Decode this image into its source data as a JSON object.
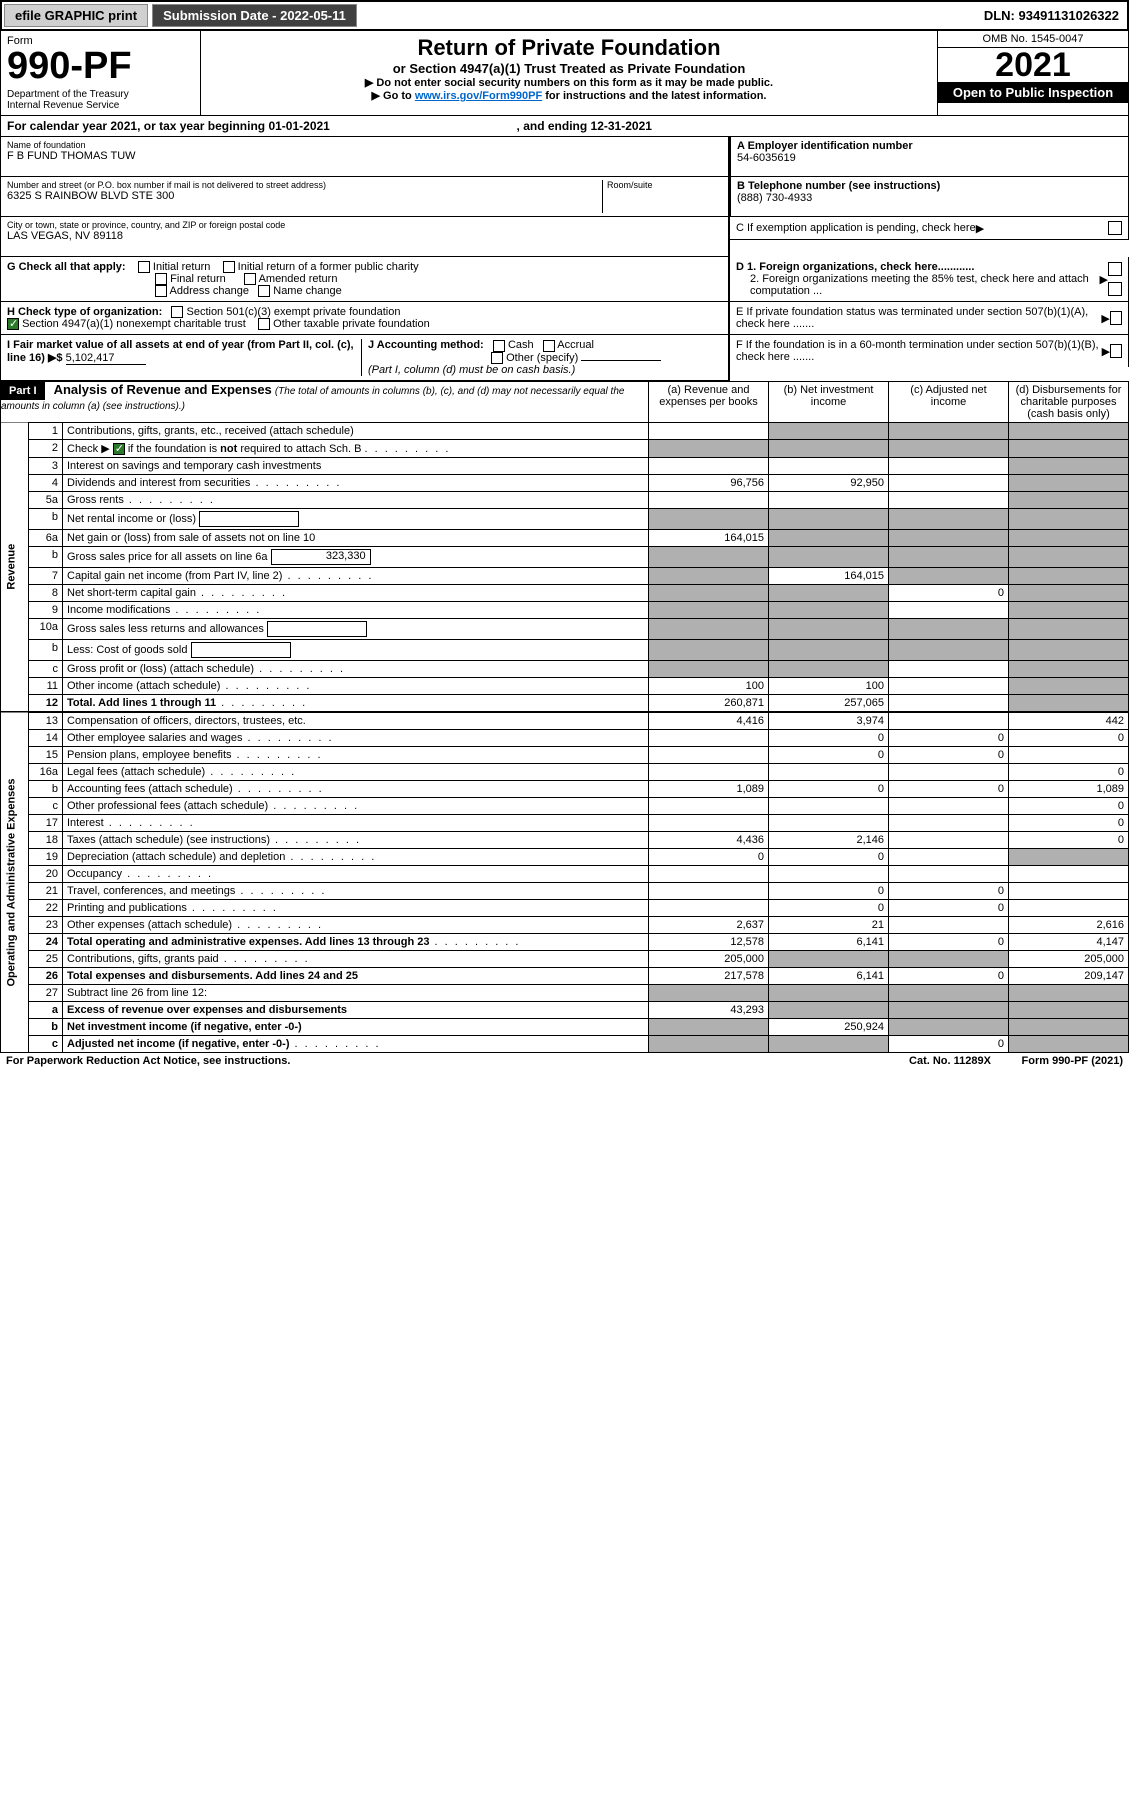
{
  "topbar": {
    "efile": "efile GRAPHIC print",
    "submission": "Submission Date - 2022-05-11",
    "dln_label": "DLN:",
    "dln": "93491131026322"
  },
  "header": {
    "form_label": "Form",
    "form_no": "990-PF",
    "dept": "Department of the Treasury\nInternal Revenue Service",
    "title": "Return of Private Foundation",
    "subtitle": "or Section 4947(a)(1) Trust Treated as Private Foundation",
    "note1": "▶ Do not enter social security numbers on this form as it may be made public.",
    "note2_pre": "▶ Go to ",
    "note2_link": "www.irs.gov/Form990PF",
    "note2_post": " for instructions and the latest information.",
    "omb": "OMB No. 1545-0047",
    "year": "2021",
    "inspection": "Open to Public Inspection"
  },
  "calendar": {
    "text_pre": "For calendar year 2021, or tax year beginning ",
    "begin": "01-01-2021",
    "mid": ", and ending ",
    "end": "12-31-2021"
  },
  "identity": {
    "name_label": "Name of foundation",
    "name": "F B FUND THOMAS TUW",
    "addr_label": "Number and street (or P.O. box number if mail is not delivered to street address)",
    "addr": "6325 S RAINBOW BLVD STE 300",
    "room_label": "Room/suite",
    "city_label": "City or town, state or province, country, and ZIP or foreign postal code",
    "city": "LAS VEGAS, NV  89118",
    "ein_label": "A Employer identification number",
    "ein": "54-6035619",
    "phone_label": "B Telephone number (see instructions)",
    "phone": "(888) 730-4933",
    "c_label": "C If exemption application is pending, check here"
  },
  "checks": {
    "g_label": "G Check all that apply:",
    "g_items": [
      "Initial return",
      "Initial return of a former public charity",
      "Final return",
      "Amended return",
      "Address change",
      "Name change"
    ],
    "h_label": "H Check type of organization:",
    "h_items": [
      "Section 501(c)(3) exempt private foundation",
      "Section 4947(a)(1) nonexempt charitable trust",
      "Other taxable private foundation"
    ],
    "h_checked_index": 1,
    "i_label": "I Fair market value of all assets at end of year (from Part II, col. (c), line 16) ▶$",
    "i_value": "5,102,417",
    "j_label": "J Accounting method:",
    "j_items": [
      "Cash",
      "Accrual",
      "Other (specify)"
    ],
    "j_note": "(Part I, column (d) must be on cash basis.)",
    "d1": "D 1. Foreign organizations, check here............",
    "d2": "2. Foreign organizations meeting the 85% test, check here and attach computation ...",
    "e": "E  If private foundation status was terminated under section 507(b)(1)(A), check here .......",
    "f": "F  If the foundation is in a 60-month termination under section 507(b)(1)(B), check here .......",
    "arrow": "▶"
  },
  "part1": {
    "label": "Part I",
    "title": "Analysis of Revenue and Expenses",
    "title_note": "(The total of amounts in columns (b), (c), and (d) may not necessarily equal the amounts in column (a) (see instructions).)",
    "cols": {
      "a": "(a) Revenue and expenses per books",
      "b": "(b) Net investment income",
      "c": "(c) Adjusted net income",
      "d": "(d) Disbursements for charitable purposes (cash basis only)"
    }
  },
  "side_labels": {
    "revenue": "Revenue",
    "expenses": "Operating and Administrative Expenses"
  },
  "rows": [
    {
      "n": "1",
      "desc": "Contributions, gifts, grants, etc., received (attach schedule)",
      "a": "",
      "b": "shaded",
      "c": "shaded",
      "d": "shaded"
    },
    {
      "n": "2",
      "desc": "Check ▶ ☑ if the foundation is not required to attach Sch. B",
      "a": "shaded",
      "b": "shaded",
      "c": "shaded",
      "d": "shaded",
      "hascheck": true,
      "dots": true
    },
    {
      "n": "3",
      "desc": "Interest on savings and temporary cash investments",
      "a": "",
      "b": "",
      "c": "",
      "d": "shaded"
    },
    {
      "n": "4",
      "desc": "Dividends and interest from securities",
      "a": "96,756",
      "b": "92,950",
      "c": "",
      "d": "shaded",
      "dots": true
    },
    {
      "n": "5a",
      "desc": "Gross rents",
      "a": "",
      "b": "",
      "c": "",
      "d": "shaded",
      "dots": true
    },
    {
      "n": "b",
      "desc": "Net rental income or (loss)",
      "sub": "",
      "a": "shaded",
      "b": "shaded",
      "c": "shaded",
      "d": "shaded"
    },
    {
      "n": "6a",
      "desc": "Net gain or (loss) from sale of assets not on line 10",
      "a": "164,015",
      "b": "shaded",
      "c": "shaded",
      "d": "shaded"
    },
    {
      "n": "b",
      "desc": "Gross sales price for all assets on line 6a",
      "sub": "323,330",
      "a": "shaded",
      "b": "shaded",
      "c": "shaded",
      "d": "shaded"
    },
    {
      "n": "7",
      "desc": "Capital gain net income (from Part IV, line 2)",
      "a": "shaded",
      "b": "164,015",
      "c": "shaded",
      "d": "shaded",
      "dots": true
    },
    {
      "n": "8",
      "desc": "Net short-term capital gain",
      "a": "shaded",
      "b": "shaded",
      "c": "0",
      "d": "shaded",
      "dots": true
    },
    {
      "n": "9",
      "desc": "Income modifications",
      "a": "shaded",
      "b": "shaded",
      "c": "",
      "d": "shaded",
      "dots": true
    },
    {
      "n": "10a",
      "desc": "Gross sales less returns and allowances",
      "sub": "",
      "a": "shaded",
      "b": "shaded",
      "c": "shaded",
      "d": "shaded"
    },
    {
      "n": "b",
      "desc": "Less: Cost of goods sold",
      "sub": "",
      "a": "shaded",
      "b": "shaded",
      "c": "shaded",
      "d": "shaded",
      "dots": true
    },
    {
      "n": "c",
      "desc": "Gross profit or (loss) (attach schedule)",
      "a": "shaded",
      "b": "shaded",
      "c": "",
      "d": "shaded",
      "dots": true
    },
    {
      "n": "11",
      "desc": "Other income (attach schedule)",
      "a": "100",
      "b": "100",
      "c": "",
      "d": "shaded",
      "dots": true
    },
    {
      "n": "12",
      "desc": "Total. Add lines 1 through 11",
      "a": "260,871",
      "b": "257,065",
      "c": "",
      "d": "shaded",
      "bold": true,
      "dots": true
    }
  ],
  "exp_rows": [
    {
      "n": "13",
      "desc": "Compensation of officers, directors, trustees, etc.",
      "a": "4,416",
      "b": "3,974",
      "c": "",
      "d": "442"
    },
    {
      "n": "14",
      "desc": "Other employee salaries and wages",
      "a": "",
      "b": "0",
      "c": "0",
      "d": "0",
      "dots": true
    },
    {
      "n": "15",
      "desc": "Pension plans, employee benefits",
      "a": "",
      "b": "0",
      "c": "0",
      "d": "",
      "dots": true
    },
    {
      "n": "16a",
      "desc": "Legal fees (attach schedule)",
      "a": "",
      "b": "",
      "c": "",
      "d": "0",
      "dots": true
    },
    {
      "n": "b",
      "desc": "Accounting fees (attach schedule)",
      "a": "1,089",
      "b": "0",
      "c": "0",
      "d": "1,089",
      "dots": true
    },
    {
      "n": "c",
      "desc": "Other professional fees (attach schedule)",
      "a": "",
      "b": "",
      "c": "",
      "d": "0",
      "dots": true
    },
    {
      "n": "17",
      "desc": "Interest",
      "a": "",
      "b": "",
      "c": "",
      "d": "0",
      "dots": true
    },
    {
      "n": "18",
      "desc": "Taxes (attach schedule) (see instructions)",
      "a": "4,436",
      "b": "2,146",
      "c": "",
      "d": "0",
      "dots": true
    },
    {
      "n": "19",
      "desc": "Depreciation (attach schedule) and depletion",
      "a": "0",
      "b": "0",
      "c": "",
      "d": "shaded",
      "dots": true
    },
    {
      "n": "20",
      "desc": "Occupancy",
      "a": "",
      "b": "",
      "c": "",
      "d": "",
      "dots": true
    },
    {
      "n": "21",
      "desc": "Travel, conferences, and meetings",
      "a": "",
      "b": "0",
      "c": "0",
      "d": "",
      "dots": true
    },
    {
      "n": "22",
      "desc": "Printing and publications",
      "a": "",
      "b": "0",
      "c": "0",
      "d": "",
      "dots": true
    },
    {
      "n": "23",
      "desc": "Other expenses (attach schedule)",
      "a": "2,637",
      "b": "21",
      "c": "",
      "d": "2,616",
      "dots": true
    },
    {
      "n": "24",
      "desc": "Total operating and administrative expenses. Add lines 13 through 23",
      "a": "12,578",
      "b": "6,141",
      "c": "0",
      "d": "4,147",
      "bold": true,
      "dots": true
    },
    {
      "n": "25",
      "desc": "Contributions, gifts, grants paid",
      "a": "205,000",
      "b": "shaded",
      "c": "shaded",
      "d": "205,000",
      "dots": true
    },
    {
      "n": "26",
      "desc": "Total expenses and disbursements. Add lines 24 and 25",
      "a": "217,578",
      "b": "6,141",
      "c": "0",
      "d": "209,147",
      "bold": true
    },
    {
      "n": "27",
      "desc": "Subtract line 26 from line 12:",
      "a": "shaded",
      "b": "shaded",
      "c": "shaded",
      "d": "shaded"
    },
    {
      "n": "a",
      "desc": "Excess of revenue over expenses and disbursements",
      "a": "43,293",
      "b": "shaded",
      "c": "shaded",
      "d": "shaded",
      "bold": true
    },
    {
      "n": "b",
      "desc": "Net investment income (if negative, enter -0-)",
      "a": "shaded",
      "b": "250,924",
      "c": "shaded",
      "d": "shaded",
      "bold": true
    },
    {
      "n": "c",
      "desc": "Adjusted net income (if negative, enter -0-)",
      "a": "shaded",
      "b": "shaded",
      "c": "0",
      "d": "shaded",
      "bold": true,
      "dots": true
    }
  ],
  "footer": {
    "left": "For Paperwork Reduction Act Notice, see instructions.",
    "mid": "Cat. No. 11289X",
    "right": "Form 990-PF (2021)"
  },
  "colors": {
    "shaded": "#b0b0b0",
    "link": "#0066cc",
    "checked": "#2a7a2a",
    "topbar_btn": "#d0d0d0",
    "topbar_dark": "#404040"
  }
}
